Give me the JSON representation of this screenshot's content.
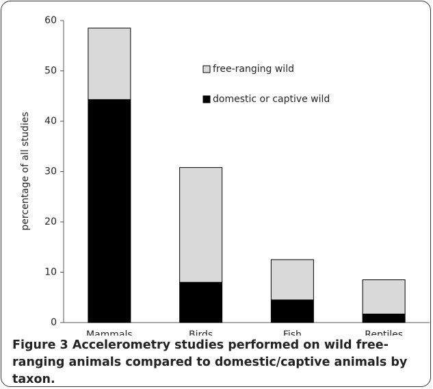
{
  "chart_data": {
    "type": "stacked_bar",
    "y_label": "percentage of all studies",
    "categories": [
      "Mammals",
      "Birds",
      "Fish",
      "Reptiles"
    ],
    "series": [
      {
        "name": "domestic or captive wild",
        "color": "#000000",
        "values": [
          44.3,
          8.0,
          4.5,
          1.7
        ]
      },
      {
        "name": "free-ranging wild",
        "color": "#d9d9d9",
        "values": [
          14.2,
          22.8,
          8.0,
          6.8
        ]
      }
    ],
    "ylim": [
      0,
      60
    ],
    "yticks": [
      0,
      10,
      20,
      30,
      40,
      50,
      60
    ]
  },
  "caption": {
    "label": "Figure 3",
    "text": "Accelerometry studies performed on wild free-ranging animals compared to domestic/captive animals by taxon."
  }
}
